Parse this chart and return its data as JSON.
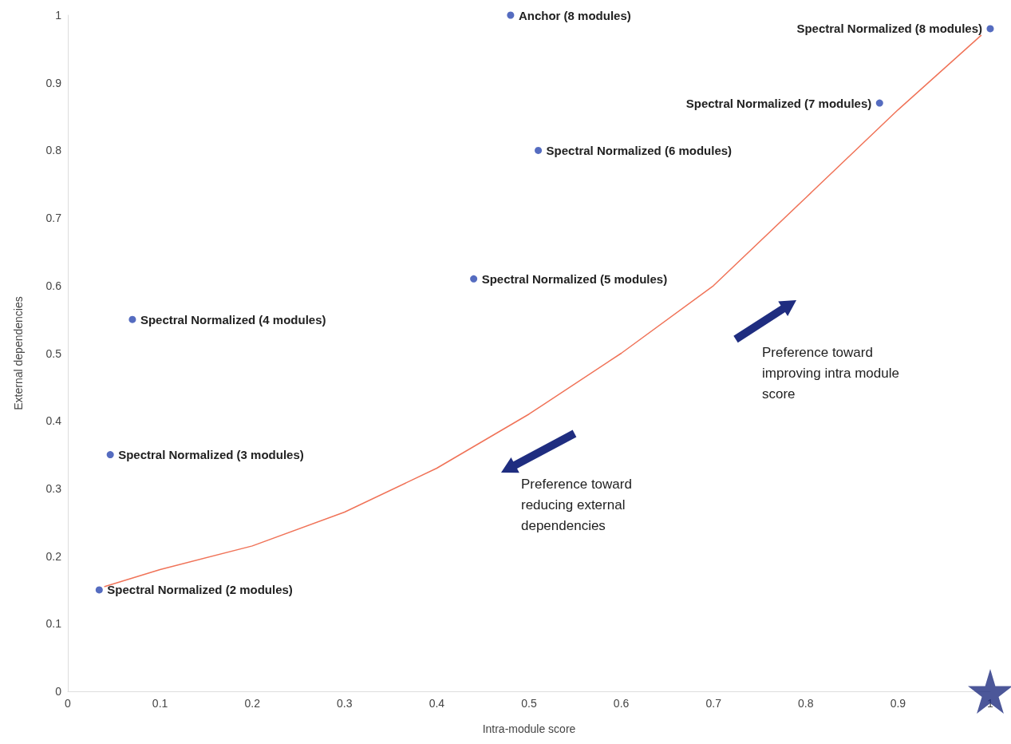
{
  "chart_data": {
    "type": "scatter",
    "xlabel": "Intra-module score",
    "ylabel": "External dependencies",
    "xlim": [
      0,
      1
    ],
    "xticks": [
      0,
      0.1,
      0.2,
      0.3,
      0.4,
      0.5,
      0.6,
      0.7,
      0.8,
      0.9,
      1
    ],
    "ylim": [
      0,
      1
    ],
    "yticks": [
      0,
      0.1,
      0.2,
      0.3,
      0.4,
      0.5,
      0.6,
      0.7,
      0.8,
      0.9,
      1
    ],
    "grid": false,
    "marker": "circle",
    "series": [
      {
        "color": "#2a47b0",
        "x": [
          0.034,
          0.046,
          0.07,
          0.44,
          0.51,
          0.48,
          0.88,
          1.0
        ],
        "values": [
          0.15,
          0.35,
          0.55,
          0.61,
          0.8,
          1.0,
          0.87,
          0.98
        ]
      },
      {
        "type": "line",
        "color": "#f07358",
        "marker": "none",
        "x": [
          0.04,
          0.1,
          0.2,
          0.3,
          0.4,
          0.5,
          0.6,
          0.7,
          0.8,
          0.9,
          0.99
        ],
        "values": [
          0.155,
          0.18,
          0.215,
          0.265,
          0.33,
          0.41,
          0.5,
          0.6,
          0.73,
          0.86,
          0.97
        ]
      },
      {
        "color": "#1f2d80",
        "marker": "star",
        "x": [
          1.0
        ],
        "values": [
          0.0
        ]
      }
    ],
    "annotations": [
      {
        "text": "Spectral Normalized (2 modules)",
        "x": 0.034,
        "y": 0.15
      },
      {
        "text": "Spectral Normalized (3 modules)",
        "x": 0.046,
        "y": 0.35
      },
      {
        "text": "Spectral Normalized (4 modules)",
        "x": 0.07,
        "y": 0.55
      },
      {
        "text": "Spectral Normalized (5 modules)",
        "x": 0.44,
        "y": 0.61
      },
      {
        "text": "Spectral Normalized (6 modules)",
        "x": 0.51,
        "y": 0.8
      },
      {
        "text": "Anchor (8 modules)",
        "x": 0.48,
        "y": 1.0
      },
      {
        "text": "Spectral Normalized (7 modules)",
        "x": 0.88,
        "y": 0.87
      },
      {
        "text": "Spectral Normalized (8 modules)",
        "x": 1.0,
        "y": 0.98
      },
      "Preference toward improving intra module score",
      "Preference toward reducing external dependencies"
    ]
  }
}
